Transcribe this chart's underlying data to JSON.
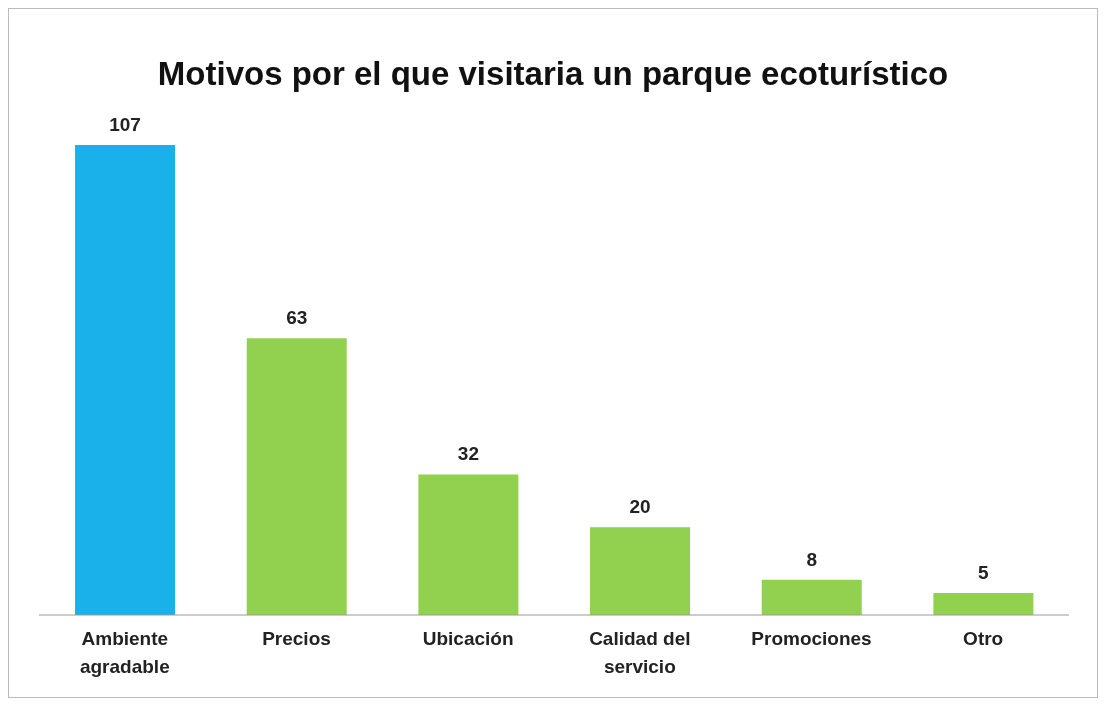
{
  "chart_data": {
    "type": "bar",
    "title": "Motivos por el que visitaria un parque ecoturístico",
    "categories": [
      "Ambiente agradable",
      "Precios",
      "Ubicación",
      "Calidad del servicio",
      "Promociones",
      "Otro"
    ],
    "values": [
      107,
      63,
      32,
      20,
      8,
      5
    ],
    "colors": [
      "#1ab0ea",
      "#92d050",
      "#92d050",
      "#92d050",
      "#92d050",
      "#92d050"
    ],
    "data_labels": true
  }
}
